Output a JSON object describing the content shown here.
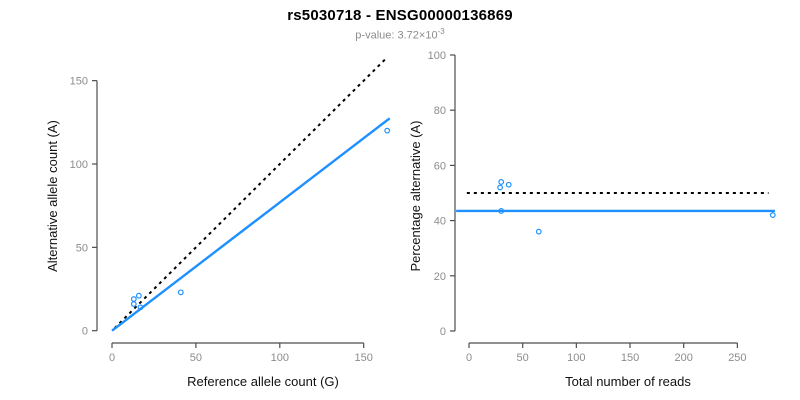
{
  "header": {
    "title": "rs5030718 - ENSG00000136869",
    "subtitle_text": "p-value: 3.72×10",
    "subtitle_exponent": "-3"
  },
  "colors": {
    "accent_blue": "#1E90FF",
    "dashed_black": "#000000",
    "axis_line": "#4D4D4D",
    "tick_label": "#8C8C8C",
    "axis_title": "#111111",
    "subtitle": "#8C8C8C",
    "background": "#FFFFFF"
  },
  "chart_data": [
    {
      "type": "scatter",
      "panel": "allele-counts",
      "xlabel": "Reference allele count (G)",
      "ylabel": "Alternative allele count (A)",
      "xticks": [
        0,
        50,
        100,
        150
      ],
      "yticks": [
        0,
        50,
        100,
        150
      ],
      "xlim": [
        0,
        165
      ],
      "ylim": [
        0,
        170
      ],
      "points": [
        [
          13,
          19
        ],
        [
          13,
          16
        ],
        [
          16,
          21
        ],
        [
          17,
          14
        ],
        [
          41,
          23
        ],
        [
          164,
          120
        ]
      ],
      "lines": [
        {
          "name": "identity-line",
          "style": "dashed",
          "color": "#000000",
          "slope": 1,
          "intercept": 0,
          "x_range": [
            1.5,
            164
          ]
        },
        {
          "name": "fit-line",
          "style": "solid",
          "color": "#1E90FF",
          "slope": 0.77,
          "intercept": 0,
          "x_range": [
            0,
            165.5
          ]
        }
      ]
    },
    {
      "type": "scatter",
      "panel": "percentage-alternative",
      "xlabel": "Total number of reads",
      "ylabel": "Percentage alternative (A)",
      "xticks": [
        0,
        50,
        100,
        150,
        200,
        250
      ],
      "yticks": [
        0,
        20,
        40,
        60,
        80,
        100
      ],
      "xlim": [
        0,
        285
      ],
      "ylim": [
        0,
        100
      ],
      "points": [
        [
          30,
          54
        ],
        [
          29,
          52
        ],
        [
          37,
          53
        ],
        [
          30,
          43.5
        ],
        [
          65,
          36
        ],
        [
          283,
          42
        ]
      ],
      "lines": [
        {
          "name": "reference-line",
          "style": "dashed",
          "color": "#000000",
          "slope": 0,
          "intercept": 50,
          "x_range": [
            -2,
            279
          ]
        },
        {
          "name": "fit-line",
          "style": "solid",
          "color": "#1E90FF",
          "slope": 0,
          "intercept": 43.5,
          "x_range": [
            -12,
            285
          ]
        }
      ]
    }
  ]
}
